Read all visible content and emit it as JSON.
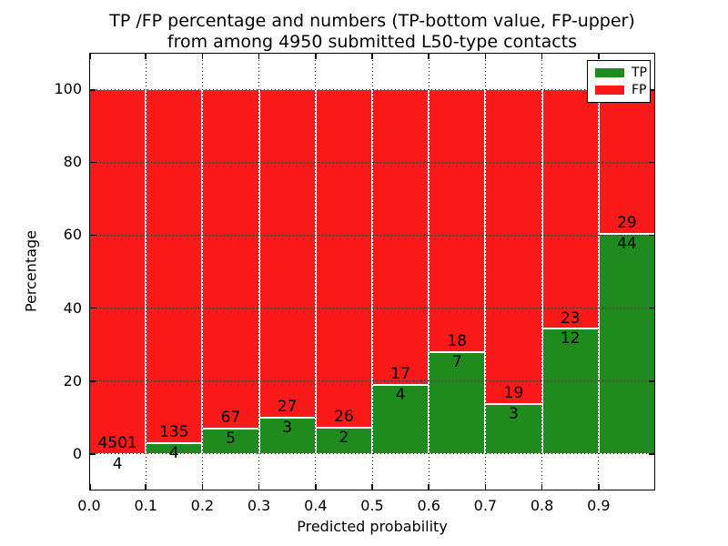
{
  "title": {
    "lines": [
      "TP /FP percentage and numbers (TP-bottom value, FP-upper)",
      "from among 4950 submitted L50-type contacts"
    ]
  },
  "chart_data": {
    "type": "bar",
    "stacked": true,
    "normalized_to_percent": true,
    "title": "TP /FP percentage and numbers (TP-bottom value, FP-upper) from among 4950 submitted L50-type contacts",
    "xlabel": "Predicted probability",
    "ylabel": "Percentage",
    "xlim": [
      0.0,
      1.0
    ],
    "ylim": [
      -10,
      110
    ],
    "bin_width": 0.1,
    "bin_starts": [
      0.0,
      0.1,
      0.2,
      0.3,
      0.4,
      0.5,
      0.6,
      0.7,
      0.8,
      0.9
    ],
    "xticks": [
      "0.0",
      "0.1",
      "0.2",
      "0.3",
      "0.4",
      "0.5",
      "0.6",
      "0.7",
      "0.8",
      "0.9"
    ],
    "yticks": [
      0,
      20,
      40,
      60,
      80,
      100
    ],
    "grid": "dotted black, both axes, drawn over bars",
    "series": [
      {
        "name": "TP",
        "color": "#1f8b1f",
        "values": [
          4,
          4,
          5,
          3,
          2,
          4,
          7,
          3,
          12,
          44
        ]
      },
      {
        "name": "FP",
        "color": "#fa1a1a",
        "values": [
          4501,
          135,
          67,
          27,
          26,
          17,
          18,
          19,
          23,
          29
        ]
      }
    ],
    "tp_percent_of_bin": [
      0.09,
      2.88,
      6.94,
      10.0,
      7.14,
      19.05,
      28.0,
      13.64,
      34.29,
      60.27
    ],
    "legend": {
      "position": "upper right",
      "entries": [
        {
          "label": "TP",
          "color": "#1f8b1f"
        },
        {
          "label": "FP",
          "color": "#fa1a1a"
        }
      ]
    }
  }
}
